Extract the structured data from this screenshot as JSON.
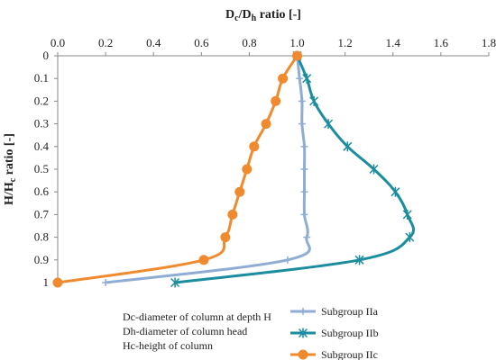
{
  "chart_data": {
    "type": "line",
    "title": "",
    "xlabel_main": "D",
    "xlabel_sub1": "c",
    "xlabel_mid": "/D",
    "xlabel_sub2": "h",
    "xlabel_tail": " ratio [-]",
    "ylabel_main": "H/H",
    "ylabel_sub": "c",
    "ylabel_tail": " ratio [-]",
    "xlim": [
      0.0,
      1.8
    ],
    "ylim": [
      0,
      1
    ],
    "x_axis_position": "top",
    "y_axis_inverted": true,
    "x_ticks": [
      "0.0",
      "0.2",
      "0.4",
      "0.6",
      "0.8",
      "1.0",
      "1.2",
      "1.4",
      "1.6",
      "1.8"
    ],
    "y_ticks": [
      "0",
      "0.1",
      "0.2",
      "0.3",
      "0.4",
      "0.5",
      "0.6",
      "0.7",
      "0.8",
      "0.9",
      "1"
    ],
    "grid": false,
    "legend_position": "bottom-right",
    "series": [
      {
        "name": "Subgroup IIa",
        "color": "#8fadd4",
        "marker": "plus",
        "points": [
          [
            1.0,
            0
          ],
          [
            1.01,
            0.1
          ],
          [
            1.02,
            0.2
          ],
          [
            1.02,
            0.3
          ],
          [
            1.03,
            0.4
          ],
          [
            1.03,
            0.5
          ],
          [
            1.03,
            0.6
          ],
          [
            1.03,
            0.7
          ],
          [
            1.04,
            0.8
          ],
          [
            0.96,
            0.9
          ],
          [
            0.2,
            1.0
          ]
        ]
      },
      {
        "name": "Subgroup IIb",
        "color": "#1c8d9e",
        "marker": "star",
        "points": [
          [
            1.0,
            0
          ],
          [
            1.04,
            0.1
          ],
          [
            1.07,
            0.2
          ],
          [
            1.13,
            0.3
          ],
          [
            1.21,
            0.4
          ],
          [
            1.32,
            0.5
          ],
          [
            1.41,
            0.6
          ],
          [
            1.46,
            0.7
          ],
          [
            1.47,
            0.8
          ],
          [
            1.26,
            0.9
          ],
          [
            0.49,
            1.0
          ]
        ]
      },
      {
        "name": "Subgroup IIc",
        "color": "#f08a2e",
        "marker": "circle",
        "points": [
          [
            1.0,
            0
          ],
          [
            0.94,
            0.1
          ],
          [
            0.91,
            0.2
          ],
          [
            0.87,
            0.3
          ],
          [
            0.82,
            0.4
          ],
          [
            0.79,
            0.5
          ],
          [
            0.76,
            0.6
          ],
          [
            0.73,
            0.7
          ],
          [
            0.7,
            0.8
          ],
          [
            0.61,
            0.9
          ],
          [
            0.0,
            1.0
          ]
        ]
      }
    ]
  },
  "notes": {
    "line1": "Dc-diameter of column at depth H",
    "line2": "Dh-diameter of column head",
    "line3": "Hc-height of column"
  }
}
